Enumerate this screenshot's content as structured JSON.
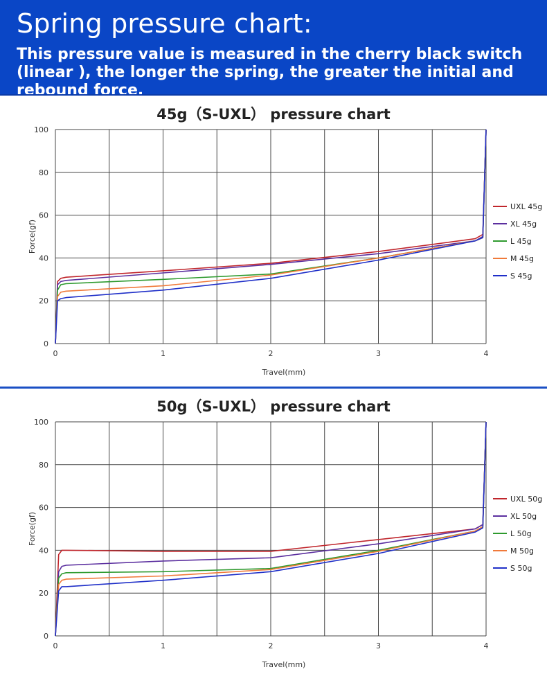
{
  "header": {
    "title": "Spring pressure chart:",
    "subtitle": "This pressure value is measured in the cherry black switch (linear ), the longer the spring, the greater the initial and rebound force."
  },
  "chart_data": [
    {
      "type": "line",
      "title": "45g（S-UXL） pressure chart",
      "xlabel": "Travel(mm)",
      "ylabel": "Force(gf)",
      "xlim": [
        0,
        4
      ],
      "ylim": [
        0,
        100
      ],
      "xticks": [
        0,
        1,
        2,
        3,
        4
      ],
      "yticks": [
        0,
        20,
        40,
        60,
        80,
        100
      ],
      "grid": true,
      "legend_position": "right",
      "series": [
        {
          "name": "UXL 45g",
          "color": "#c0262c",
          "x": [
            0,
            0.02,
            0.05,
            0.1,
            1,
            2,
            3,
            3.9,
            3.97,
            4.0
          ],
          "y": [
            0,
            29,
            30.5,
            31,
            34,
            37.5,
            43,
            49,
            51,
            100
          ]
        },
        {
          "name": "XL 45g",
          "color": "#5b2f9f",
          "x": [
            0,
            0.02,
            0.05,
            0.1,
            1,
            2,
            3,
            3.9,
            3.97,
            4.0
          ],
          "y": [
            0,
            27.5,
            29,
            29.5,
            33,
            37,
            42,
            48,
            50,
            100
          ]
        },
        {
          "name": "L 45g",
          "color": "#2e9a2e",
          "x": [
            0,
            0.02,
            0.05,
            0.1,
            1,
            2,
            3,
            3.9,
            3.97,
            4.0
          ],
          "y": [
            0,
            25,
            27.5,
            28,
            30,
            32.5,
            40,
            48,
            49.5,
            100
          ]
        },
        {
          "name": "M 45g",
          "color": "#f07a3a",
          "x": [
            0,
            0.02,
            0.05,
            0.1,
            1,
            2,
            3,
            3.9,
            3.97,
            4.0
          ],
          "y": [
            0,
            22,
            24,
            24.5,
            27,
            32,
            40,
            48,
            49.5,
            100
          ]
        },
        {
          "name": "S 45g",
          "color": "#1f2fc8",
          "x": [
            0,
            0.02,
            0.05,
            0.1,
            1,
            2,
            3,
            3.9,
            3.97,
            4.0
          ],
          "y": [
            0,
            20,
            21,
            21.5,
            25,
            30.5,
            39,
            48,
            49.5,
            100
          ]
        }
      ]
    },
    {
      "type": "line",
      "title": "50g（S-UXL） pressure chart",
      "xlabel": "Travel(mm)",
      "ylabel": "Force(gf)",
      "xlim": [
        0,
        4
      ],
      "ylim": [
        0,
        100
      ],
      "xticks": [
        0,
        1,
        2,
        3,
        4
      ],
      "yticks": [
        0,
        20,
        40,
        60,
        80,
        100
      ],
      "grid": true,
      "legend_position": "right",
      "series": [
        {
          "name": "UXL 50g",
          "color": "#c0262c",
          "x": [
            0,
            0.03,
            0.06,
            0.1,
            1,
            2,
            3,
            3.9,
            3.97,
            4.0
          ],
          "y": [
            0,
            38,
            40,
            40,
            39.5,
            39.5,
            45,
            50,
            52,
            100
          ]
        },
        {
          "name": "XL 50g",
          "color": "#5b2f9f",
          "x": [
            0,
            0.03,
            0.06,
            0.1,
            1,
            2,
            3,
            3.9,
            3.97,
            4.0
          ],
          "y": [
            0,
            30,
            32.5,
            33,
            35,
            36.5,
            43,
            50,
            52,
            100
          ]
        },
        {
          "name": "L 50g",
          "color": "#2e9a2e",
          "x": [
            0,
            0.03,
            0.06,
            0.1,
            1,
            2,
            3,
            3.9,
            3.97,
            4.0
          ],
          "y": [
            0,
            27,
            29,
            29.5,
            30,
            31.5,
            40,
            49,
            51,
            100
          ]
        },
        {
          "name": "M 50g",
          "color": "#f07a3a",
          "x": [
            0,
            0.03,
            0.06,
            0.1,
            1,
            2,
            3,
            3.9,
            3.97,
            4.0
          ],
          "y": [
            0,
            24,
            26,
            26.5,
            28,
            31,
            39.5,
            49,
            51,
            100
          ]
        },
        {
          "name": "S 50g",
          "color": "#1f2fc8",
          "x": [
            0,
            0.03,
            0.06,
            0.1,
            1,
            2,
            3,
            3.9,
            3.97,
            4.0
          ],
          "y": [
            0,
            21,
            23,
            23,
            26,
            30,
            38.5,
            48.5,
            50.5,
            100
          ]
        }
      ]
    }
  ]
}
